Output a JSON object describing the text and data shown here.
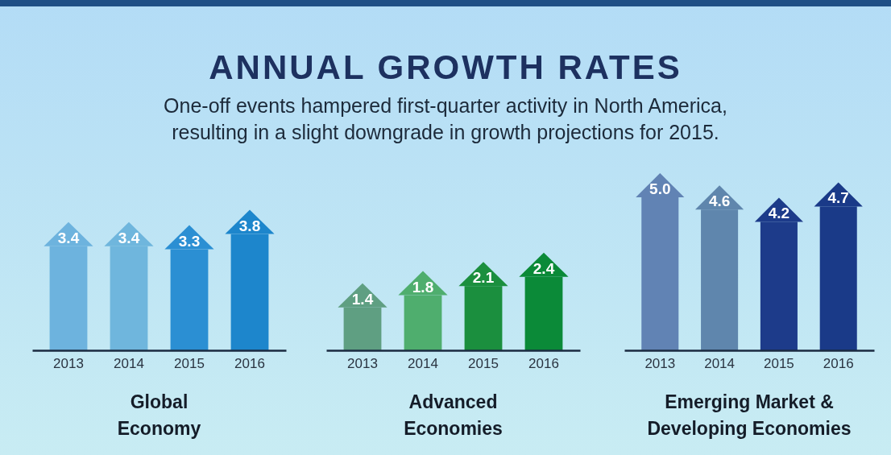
{
  "chart_data": [
    {
      "type": "bar",
      "title": "ANNUAL GROWTH RATES",
      "subtitle": "One-off events hampered first-quarter activity in North America, resulting in a slight downgrade in growth projections for 2015.",
      "xlabel": "Global Economy",
      "categories": [
        "2013",
        "2014",
        "2015",
        "2016"
      ],
      "values": [
        3.4,
        3.4,
        3.3,
        3.8
      ],
      "colors": [
        "#6db3de",
        "#6fb6dd",
        "#2b8fd3",
        "#1d86cc"
      ],
      "value_labels": [
        "3.4",
        "3.4",
        "3.3",
        "3.8"
      ]
    },
    {
      "type": "bar",
      "xlabel": "Advanced Economies",
      "categories": [
        "2013",
        "2014",
        "2015",
        "2016"
      ],
      "values": [
        1.4,
        1.8,
        2.1,
        2.4
      ],
      "colors": [
        "#5f9f82",
        "#4fae6e",
        "#1b8f3e",
        "#0b8a38"
      ],
      "value_labels": [
        "1.4",
        "1.8",
        "2.1",
        "2.4"
      ]
    },
    {
      "type": "bar",
      "xlabel": "Emerging Market & Developing Economies",
      "categories": [
        "2013",
        "2014",
        "2015",
        "2016"
      ],
      "values": [
        5.0,
        4.6,
        4.2,
        4.7
      ],
      "colors": [
        "#6183b4",
        "#5f86ad",
        "#1d3b8a",
        "#1a3a88"
      ],
      "value_labels": [
        "5.0",
        "4.6",
        "4.2",
        "4.7"
      ]
    }
  ]
}
